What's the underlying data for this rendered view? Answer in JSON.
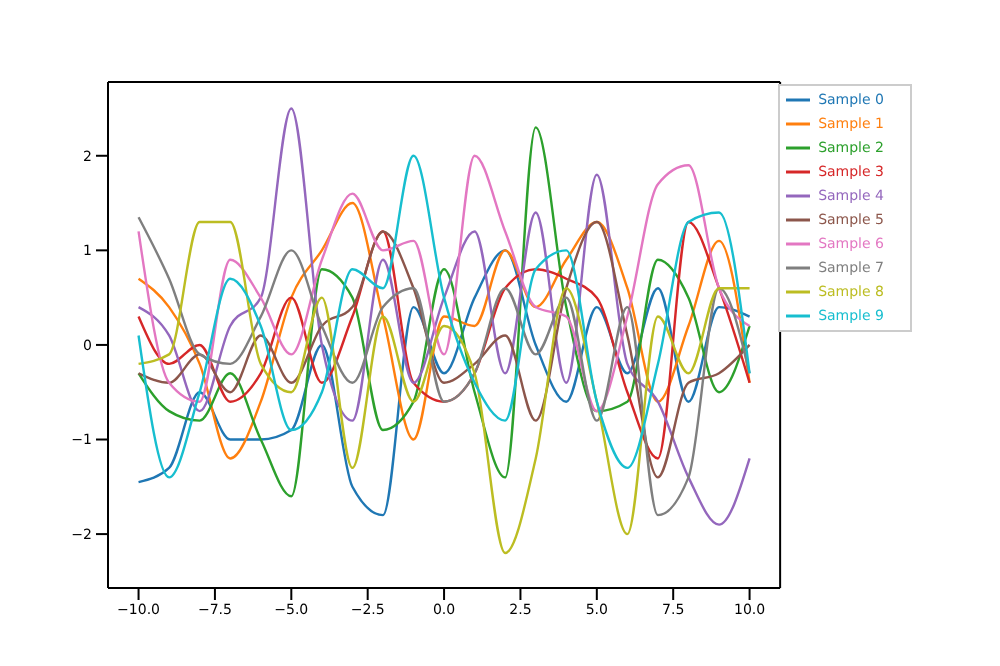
{
  "chart_data": {
    "type": "line",
    "x": [
      -10,
      -9,
      -8,
      -7,
      -6,
      -5,
      -4,
      -3,
      -2,
      -1,
      0,
      1,
      2,
      3,
      4,
      5,
      6,
      7,
      8,
      9,
      10
    ],
    "series": [
      {
        "name": "Sample 0",
        "color": "#1f77b4",
        "values": [
          -1.45,
          -1.3,
          -0.5,
          -1.0,
          -1.0,
          -0.9,
          0.0,
          -1.5,
          -1.8,
          0.4,
          -0.3,
          0.5,
          1.0,
          0.0,
          -0.6,
          0.4,
          -0.3,
          0.6,
          -0.6,
          0.4,
          0.3
        ]
      },
      {
        "name": "Sample 1",
        "color": "#ff7f0e",
        "values": [
          0.7,
          0.4,
          -0.2,
          -1.2,
          -0.6,
          0.5,
          1.0,
          1.5,
          0.3,
          -1.0,
          0.3,
          0.2,
          1.0,
          0.4,
          0.9,
          1.3,
          0.6,
          -0.6,
          0.2,
          1.1,
          -0.4
        ]
      },
      {
        "name": "Sample 2",
        "color": "#2ca02c",
        "values": [
          -0.3,
          -0.7,
          -0.8,
          -0.3,
          -1.0,
          -1.6,
          0.8,
          0.5,
          -0.9,
          -0.6,
          0.8,
          -0.5,
          -1.4,
          2.3,
          0.4,
          -0.7,
          -0.6,
          0.9,
          0.5,
          -0.5,
          0.2
        ]
      },
      {
        "name": "Sample 3",
        "color": "#d62728",
        "values": [
          0.3,
          -0.2,
          0.0,
          -0.6,
          -0.3,
          0.5,
          -0.4,
          0.3,
          1.2,
          -0.4,
          -0.6,
          -0.3,
          0.6,
          0.8,
          0.7,
          0.5,
          -0.5,
          -1.2,
          1.3,
          0.6,
          -0.4
        ]
      },
      {
        "name": "Sample 4",
        "color": "#9467bd",
        "values": [
          0.4,
          0.1,
          -0.7,
          0.2,
          0.5,
          2.5,
          0.0,
          -0.8,
          0.9,
          -0.4,
          0.5,
          1.2,
          -0.3,
          1.4,
          -0.4,
          1.8,
          -0.2,
          -0.6,
          -1.4,
          -1.9,
          -1.2
        ]
      },
      {
        "name": "Sample 5",
        "color": "#8c564b",
        "values": [
          -0.3,
          -0.4,
          -0.1,
          -0.5,
          0.1,
          -0.4,
          0.2,
          0.4,
          1.2,
          0.6,
          -0.4,
          -0.2,
          0.1,
          -0.8,
          0.6,
          1.3,
          0.1,
          -1.4,
          -0.4,
          -0.3,
          0.0
        ]
      },
      {
        "name": "Sample 6",
        "color": "#e377c2",
        "values": [
          1.2,
          -0.4,
          -0.6,
          0.9,
          0.5,
          -0.1,
          0.9,
          1.6,
          1.0,
          1.1,
          -0.1,
          2.0,
          1.2,
          0.4,
          0.3,
          -0.7,
          0.3,
          1.7,
          1.9,
          0.6,
          0.2
        ]
      },
      {
        "name": "Sample 7",
        "color": "#7f7f7f",
        "values": [
          1.35,
          0.7,
          -0.1,
          -0.2,
          0.3,
          1.0,
          0.2,
          -0.4,
          0.4,
          0.6,
          -0.6,
          -0.3,
          0.6,
          -0.1,
          0.5,
          -0.8,
          0.4,
          -1.8,
          -1.4,
          0.6,
          -0.3
        ]
      },
      {
        "name": "Sample 8",
        "color": "#bcbd22",
        "values": [
          -0.2,
          -0.1,
          1.3,
          1.3,
          -0.2,
          -0.5,
          0.5,
          -1.3,
          0.3,
          -0.6,
          0.2,
          -0.3,
          -2.2,
          -1.2,
          0.6,
          -0.6,
          -2.0,
          0.3,
          -0.3,
          0.6,
          0.6
        ]
      },
      {
        "name": "Sample 9",
        "color": "#17becf",
        "values": [
          0.1,
          -1.4,
          -0.5,
          0.7,
          0.2,
          -0.9,
          -0.5,
          0.8,
          0.6,
          2.0,
          0.5,
          -0.4,
          -0.8,
          0.8,
          1.0,
          -0.6,
          -1.3,
          -0.2,
          1.3,
          1.4,
          -0.3
        ]
      }
    ],
    "xlim": [
      -11,
      11
    ],
    "ylim": [
      -2.57,
      2.78
    ],
    "xticks": [
      {
        "value": -10,
        "label": "−10.0"
      },
      {
        "value": -7.5,
        "label": "−7.5"
      },
      {
        "value": -5,
        "label": "−5.0"
      },
      {
        "value": -2.5,
        "label": "−2.5"
      },
      {
        "value": 0,
        "label": "0.0"
      },
      {
        "value": 2.5,
        "label": "2.5"
      },
      {
        "value": 5,
        "label": "5.0"
      },
      {
        "value": 7.5,
        "label": "7.5"
      },
      {
        "value": 10,
        "label": "10.0"
      }
    ],
    "yticks": [
      {
        "value": -2,
        "label": "−2"
      },
      {
        "value": -1,
        "label": "−1"
      },
      0,
      1,
      2
    ],
    "legend": "top right",
    "grid": false,
    "marker": "none",
    "line_style": "solid"
  }
}
